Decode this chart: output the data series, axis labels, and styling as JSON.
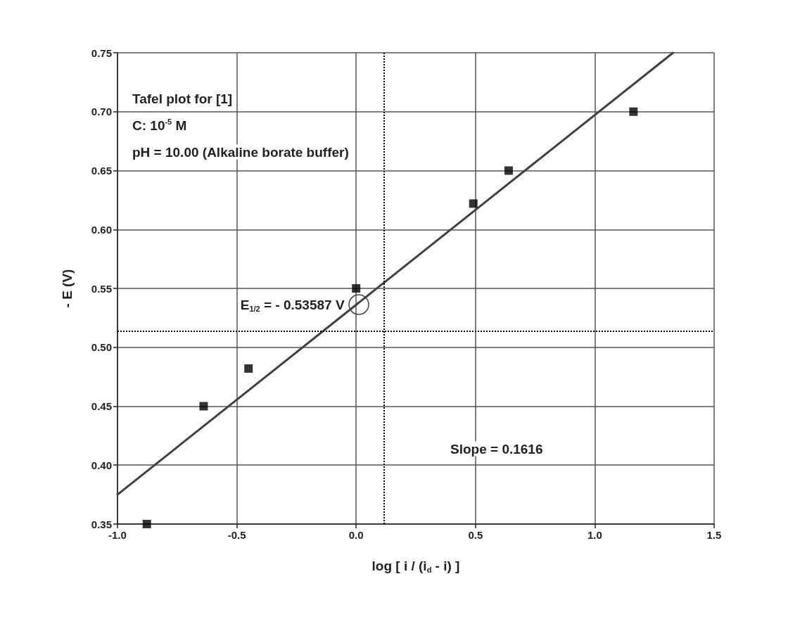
{
  "chart_data": {
    "type": "scatter",
    "xlabel": "log [ i / (i$_{d}$ - i) ]",
    "ylabel": "- E (V)",
    "series": [
      {
        "color": "#000000",
        "x": [
          -0.877,
          -0.639,
          -0.451,
          0.0,
          0.491,
          0.639,
          1.162
        ],
        "values": [
          0.35,
          0.45,
          0.482,
          0.55,
          0.622,
          0.65,
          0.7
        ],
        "marker": "square"
      },
      {
        "type": "line",
        "color": "#404040",
        "x": [
          -1.0,
          1.328
        ],
        "values": [
          0.375,
          0.75
        ],
        "marker": "none",
        "line_style": "solid"
      }
    ],
    "xlim": [
      -1.0,
      1.5
    ],
    "xticks": [
      {
        "value": -1.0,
        "label": "-1.0"
      },
      {
        "value": -0.5,
        "label": "-0.5"
      },
      {
        "value": 0,
        "label": "0.0"
      },
      {
        "value": 0.5,
        "label": "0.5"
      },
      {
        "value": 1.0,
        "label": "1.0"
      },
      {
        "value": 1.5,
        "label": "1.5"
      }
    ],
    "ylim": [
      0.35,
      0.75
    ],
    "yticks": [
      {
        "value": 0.35,
        "label": "0.35"
      },
      {
        "value": 0.4,
        "label": "0.40"
      },
      {
        "value": 0.45,
        "label": "0.45"
      },
      {
        "value": 0.5,
        "label": "0.50"
      },
      {
        "value": 0.55,
        "label": "0.55"
      },
      {
        "value": 0.6,
        "label": "0.60"
      },
      {
        "value": 0.65,
        "label": "0.65"
      },
      {
        "value": 0.7,
        "label": "0.70"
      },
      {
        "value": 0.75,
        "label": "0.75"
      }
    ],
    "grid": true,
    "ref_lines": [
      {
        "axis": "x",
        "value": 0.116,
        "color": "#000000",
        "line_style": "dotted"
      },
      {
        "axis": "y",
        "value": 0.514,
        "color": "#000000",
        "line_style": "dotted"
      }
    ],
    "annotations": [
      "Tafel plot for [1]",
      "C: 10$^{-5}$ M",
      "pH = 10.00 (Alkaline borate buffer)",
      {
        "text": "E$_{1/2}$ = - 0.53587 V",
        "x": 0.01,
        "y": 0.536
      },
      "Slope = 0.1616"
    ]
  }
}
